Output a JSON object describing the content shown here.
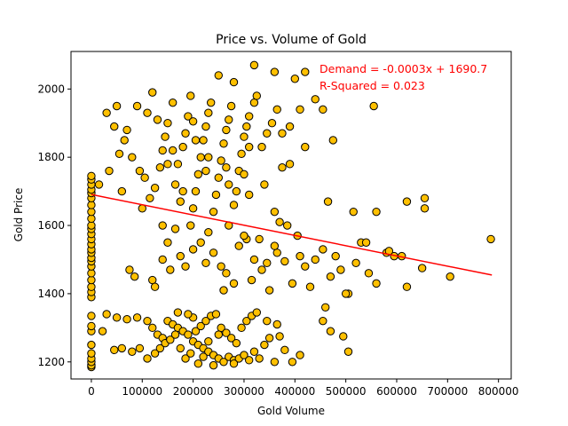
{
  "chart_data": {
    "type": "scatter",
    "title": "Price vs. Volume of Gold",
    "xlabel": "Gold Volume",
    "ylabel": "Gold Price",
    "xlim": [
      -40000,
      825000
    ],
    "ylim": [
      1150,
      2110
    ],
    "x_ticks": [
      0,
      100000,
      200000,
      300000,
      400000,
      500000,
      600000,
      700000,
      800000
    ],
    "y_ticks": [
      1200,
      1400,
      1600,
      1800,
      2000
    ],
    "grid": false,
    "colors": {
      "marker_fill": "#FFC000",
      "marker_edge": "#000000",
      "regression_line": "#FF0000",
      "annotation": "#FF0000"
    },
    "regression": {
      "slope": -0.0003,
      "intercept": 1690.7,
      "x_range": [
        0,
        787000
      ]
    },
    "annotations": {
      "equation": "Demand = -0.0003x + 1690.7",
      "r_squared": "R-Squared = 0.023"
    },
    "points": [
      [
        0,
        1185
      ],
      [
        0,
        1190
      ],
      [
        0,
        1200
      ],
      [
        0,
        1210
      ],
      [
        0,
        1225
      ],
      [
        0,
        1250
      ],
      [
        0,
        1290
      ],
      [
        0,
        1305
      ],
      [
        0,
        1335
      ],
      [
        0,
        1390
      ],
      [
        0,
        1405
      ],
      [
        0,
        1420
      ],
      [
        0,
        1440
      ],
      [
        0,
        1460
      ],
      [
        0,
        1480
      ],
      [
        0,
        1495
      ],
      [
        0,
        1505
      ],
      [
        0,
        1520
      ],
      [
        0,
        1530
      ],
      [
        0,
        1545
      ],
      [
        0,
        1560
      ],
      [
        0,
        1575
      ],
      [
        0,
        1590
      ],
      [
        0,
        1600
      ],
      [
        0,
        1620
      ],
      [
        0,
        1640
      ],
      [
        0,
        1660
      ],
      [
        0,
        1680
      ],
      [
        0,
        1695
      ],
      [
        0,
        1705
      ],
      [
        0,
        1720
      ],
      [
        0,
        1735
      ],
      [
        0,
        1745
      ],
      [
        45000,
        1235
      ],
      [
        60000,
        1240
      ],
      [
        80000,
        1230
      ],
      [
        95000,
        1240
      ],
      [
        22000,
        1290
      ],
      [
        30000,
        1340
      ],
      [
        50000,
        1330
      ],
      [
        70000,
        1325
      ],
      [
        90000,
        1330
      ],
      [
        110000,
        1320
      ],
      [
        120000,
        1300
      ],
      [
        130000,
        1280
      ],
      [
        140000,
        1270
      ],
      [
        150000,
        1320
      ],
      [
        160000,
        1310
      ],
      [
        170000,
        1300
      ],
      [
        180000,
        1290
      ],
      [
        190000,
        1280
      ],
      [
        200000,
        1260
      ],
      [
        210000,
        1250
      ],
      [
        220000,
        1240
      ],
      [
        230000,
        1230
      ],
      [
        240000,
        1220
      ],
      [
        250000,
        1210
      ],
      [
        260000,
        1200
      ],
      [
        270000,
        1215
      ],
      [
        280000,
        1205
      ],
      [
        290000,
        1210
      ],
      [
        300000,
        1220
      ],
      [
        310000,
        1205
      ],
      [
        320000,
        1230
      ],
      [
        330000,
        1210
      ],
      [
        340000,
        1250
      ],
      [
        350000,
        1270
      ],
      [
        360000,
        1200
      ],
      [
        370000,
        1275
      ],
      [
        380000,
        1235
      ],
      [
        395000,
        1200
      ],
      [
        410000,
        1220
      ],
      [
        455000,
        1320
      ],
      [
        470000,
        1290
      ],
      [
        495000,
        1275
      ],
      [
        505000,
        1230
      ],
      [
        110000,
        1210
      ],
      [
        125000,
        1225
      ],
      [
        135000,
        1240
      ],
      [
        145000,
        1255
      ],
      [
        155000,
        1265
      ],
      [
        165000,
        1280
      ],
      [
        175000,
        1240
      ],
      [
        185000,
        1210
      ],
      [
        195000,
        1225
      ],
      [
        205000,
        1290
      ],
      [
        215000,
        1305
      ],
      [
        225000,
        1320
      ],
      [
        235000,
        1335
      ],
      [
        245000,
        1340
      ],
      [
        255000,
        1300
      ],
      [
        265000,
        1285
      ],
      [
        275000,
        1270
      ],
      [
        285000,
        1255
      ],
      [
        295000,
        1300
      ],
      [
        305000,
        1320
      ],
      [
        315000,
        1335
      ],
      [
        325000,
        1345
      ],
      [
        345000,
        1320
      ],
      [
        365000,
        1310
      ],
      [
        210000,
        1195
      ],
      [
        240000,
        1190
      ],
      [
        280000,
        1195
      ],
      [
        200000,
        1330
      ],
      [
        190000,
        1340
      ],
      [
        170000,
        1345
      ],
      [
        230000,
        1260
      ],
      [
        250000,
        1280
      ],
      [
        220000,
        1215
      ],
      [
        75000,
        1470
      ],
      [
        85000,
        1450
      ],
      [
        120000,
        1440
      ],
      [
        140000,
        1500
      ],
      [
        155000,
        1470
      ],
      [
        175000,
        1510
      ],
      [
        185000,
        1480
      ],
      [
        200000,
        1530
      ],
      [
        215000,
        1550
      ],
      [
        225000,
        1490
      ],
      [
        240000,
        1520
      ],
      [
        255000,
        1480
      ],
      [
        265000,
        1460
      ],
      [
        280000,
        1430
      ],
      [
        290000,
        1540
      ],
      [
        305000,
        1560
      ],
      [
        320000,
        1500
      ],
      [
        335000,
        1470
      ],
      [
        350000,
        1410
      ],
      [
        365000,
        1520
      ],
      [
        380000,
        1495
      ],
      [
        395000,
        1430
      ],
      [
        410000,
        1510
      ],
      [
        420000,
        1480
      ],
      [
        440000,
        1500
      ],
      [
        455000,
        1530
      ],
      [
        470000,
        1450
      ],
      [
        490000,
        1470
      ],
      [
        505000,
        1400
      ],
      [
        520000,
        1490
      ],
      [
        530000,
        1550
      ],
      [
        545000,
        1460
      ],
      [
        560000,
        1430
      ],
      [
        580000,
        1520
      ],
      [
        595000,
        1510
      ],
      [
        620000,
        1420
      ],
      [
        125000,
        1420
      ],
      [
        150000,
        1550
      ],
      [
        165000,
        1590
      ],
      [
        195000,
        1600
      ],
      [
        230000,
        1580
      ],
      [
        270000,
        1600
      ],
      [
        300000,
        1570
      ],
      [
        330000,
        1560
      ],
      [
        360000,
        1540
      ],
      [
        385000,
        1600
      ],
      [
        405000,
        1570
      ],
      [
        260000,
        1410
      ],
      [
        315000,
        1440
      ],
      [
        345000,
        1490
      ],
      [
        430000,
        1420
      ],
      [
        460000,
        1360
      ],
      [
        500000,
        1400
      ],
      [
        15000,
        1720
      ],
      [
        35000,
        1760
      ],
      [
        55000,
        1810
      ],
      [
        65000,
        1850
      ],
      [
        80000,
        1800
      ],
      [
        95000,
        1760
      ],
      [
        105000,
        1740
      ],
      [
        115000,
        1680
      ],
      [
        125000,
        1710
      ],
      [
        135000,
        1770
      ],
      [
        140000,
        1820
      ],
      [
        145000,
        1860
      ],
      [
        150000,
        1900
      ],
      [
        160000,
        1960
      ],
      [
        165000,
        1720
      ],
      [
        170000,
        1780
      ],
      [
        180000,
        1830
      ],
      [
        185000,
        1870
      ],
      [
        190000,
        1920
      ],
      [
        195000,
        1980
      ],
      [
        205000,
        1700
      ],
      [
        210000,
        1750
      ],
      [
        215000,
        1800
      ],
      [
        220000,
        1850
      ],
      [
        225000,
        1890
      ],
      [
        230000,
        1930
      ],
      [
        235000,
        1960
      ],
      [
        245000,
        1690
      ],
      [
        250000,
        1740
      ],
      [
        255000,
        1790
      ],
      [
        260000,
        1840
      ],
      [
        265000,
        1880
      ],
      [
        270000,
        1910
      ],
      [
        275000,
        1950
      ],
      [
        285000,
        1700
      ],
      [
        290000,
        1760
      ],
      [
        295000,
        1810
      ],
      [
        300000,
        1860
      ],
      [
        305000,
        1890
      ],
      [
        310000,
        1920
      ],
      [
        320000,
        1960
      ],
      [
        325000,
        1980
      ],
      [
        335000,
        1830
      ],
      [
        345000,
        1870
      ],
      [
        355000,
        1900
      ],
      [
        365000,
        1940
      ],
      [
        375000,
        1870
      ],
      [
        390000,
        1890
      ],
      [
        410000,
        1940
      ],
      [
        420000,
        1830
      ],
      [
        440000,
        1970
      ],
      [
        455000,
        1940
      ],
      [
        475000,
        1850
      ],
      [
        30000,
        1930
      ],
      [
        50000,
        1950
      ],
      [
        70000,
        1880
      ],
      [
        90000,
        1950
      ],
      [
        110000,
        1930
      ],
      [
        120000,
        1990
      ],
      [
        130000,
        1910
      ],
      [
        175000,
        1670
      ],
      [
        200000,
        1650
      ],
      [
        240000,
        1640
      ],
      [
        280000,
        1660
      ],
      [
        310000,
        1690
      ],
      [
        360000,
        1640
      ],
      [
        370000,
        1610
      ],
      [
        465000,
        1670
      ],
      [
        515000,
        1640
      ],
      [
        560000,
        1640
      ],
      [
        620000,
        1670
      ],
      [
        655000,
        1680
      ],
      [
        655000,
        1650
      ],
      [
        400000,
        2030
      ],
      [
        420000,
        2050
      ],
      [
        360000,
        2050
      ],
      [
        320000,
        2070
      ],
      [
        250000,
        2040
      ],
      [
        280000,
        2020
      ],
      [
        555000,
        1950
      ],
      [
        140000,
        1600
      ],
      [
        100000,
        1650
      ],
      [
        60000,
        1700
      ],
      [
        45000,
        1890
      ],
      [
        160000,
        1820
      ],
      [
        225000,
        1760
      ],
      [
        205000,
        1850
      ],
      [
        265000,
        1770
      ],
      [
        180000,
        1700
      ],
      [
        300000,
        1750
      ],
      [
        340000,
        1720
      ],
      [
        375000,
        1770
      ],
      [
        390000,
        1780
      ],
      [
        200000,
        1905
      ],
      [
        230000,
        1800
      ],
      [
        150000,
        1780
      ],
      [
        310000,
        1830
      ],
      [
        270000,
        1720
      ],
      [
        650000,
        1475
      ],
      [
        705000,
        1450
      ],
      [
        785000,
        1560
      ],
      [
        610000,
        1510
      ],
      [
        585000,
        1525
      ],
      [
        540000,
        1550
      ],
      [
        480000,
        1510
      ]
    ]
  }
}
